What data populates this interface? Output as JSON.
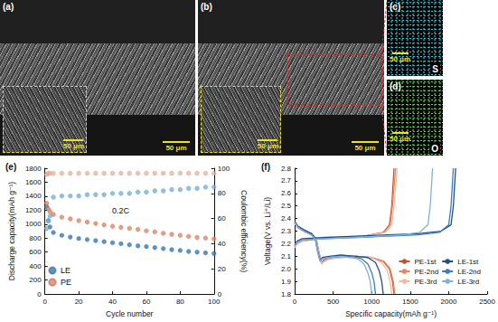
{
  "images": [
    {
      "label": "(a)",
      "scale_bar": "50 μm",
      "inset_scale_bar": "50 μm"
    },
    {
      "label": "(b)",
      "scale_bar": "50 μm",
      "inset_scale_bar": "50 μm"
    },
    {
      "label": "(c)",
      "scale_bar": "50 μm",
      "element": "S"
    },
    {
      "label": "(d)",
      "scale_bar": "50 μm",
      "element": "O"
    }
  ],
  "chart_data": [
    {
      "type": "scatter",
      "title": "(e)",
      "x_label": "Cycle number",
      "y_label": "Discharge capacity(mAh g⁻¹)",
      "y2_label": "Coulombic efficiency(%)",
      "annotations": [
        "0.2C"
      ],
      "x": [
        1,
        2,
        3,
        5,
        10,
        15,
        20,
        25,
        30,
        35,
        40,
        45,
        50,
        55,
        60,
        65,
        70,
        75,
        80,
        85,
        90,
        95,
        100
      ],
      "xlim": [
        0,
        100
      ],
      "xticks": [
        0,
        20,
        40,
        60,
        80,
        100
      ],
      "ylim": [
        0,
        1800
      ],
      "yticks": [
        0,
        200,
        400,
        600,
        800,
        1000,
        1200,
        1400,
        1600,
        1800
      ],
      "y2lim": [
        0,
        100
      ],
      "y2ticks": [
        0,
        20,
        40,
        60,
        80,
        100
      ],
      "legend": "lower left",
      "grid": false,
      "marker": "circle",
      "series": [
        {
          "name": "LE",
          "color": "#2b7bb9",
          "values": [
            1250,
            1050,
            960,
            880,
            840,
            815,
            795,
            780,
            765,
            750,
            735,
            720,
            705,
            690,
            680,
            665,
            650,
            635,
            625,
            610,
            600,
            590,
            580
          ]
        },
        {
          "name": "PE",
          "color": "#e8825c",
          "values": [
            1300,
            1220,
            1180,
            1140,
            1100,
            1075,
            1050,
            1030,
            1010,
            990,
            970,
            955,
            940,
            925,
            905,
            890,
            870,
            855,
            840,
            825,
            810,
            800,
            790
          ]
        },
        {
          "name": "LE",
          "color": "#6fb3e0",
          "axis": "y2",
          "values": [
            52,
            58,
            62,
            77,
            78,
            78,
            78,
            79,
            79,
            79,
            80,
            80,
            80,
            81,
            81,
            82,
            82,
            83,
            83,
            84,
            84,
            85,
            85
          ]
        },
        {
          "name": "PE",
          "color": "#f2b39a",
          "axis": "y2",
          "values": [
            95,
            96,
            96,
            96,
            96,
            96,
            96,
            96,
            96,
            96,
            96,
            96,
            96,
            96,
            96,
            96,
            96,
            96,
            96,
            96,
            96,
            96,
            96
          ]
        }
      ]
    },
    {
      "type": "line",
      "title": "(f)",
      "x_label": "Specific capacity(mAh g⁻¹)",
      "y_label": "Voltage(V vs. Li⁺/Li)",
      "xlim": [
        0,
        2500
      ],
      "xticks": [
        0,
        500,
        1000,
        1500,
        2000,
        2500
      ],
      "ylim": [
        1.8,
        2.8
      ],
      "yticks": [
        1.8,
        1.9,
        {
          "value": 2,
          "label": "2.0"
        },
        2.1,
        2.2,
        2.3,
        2.4,
        2.5,
        2.6,
        2.7,
        2.8
      ],
      "legend": "lower right",
      "grid": false,
      "line_style": "solid",
      "series": [
        {
          "name": "PE-1st",
          "color": "#c8542e",
          "x": [
            0,
            40,
            120,
            220,
            280,
            320,
            350,
            380,
            450,
            600,
            800,
            1000,
            1150,
            1230,
            1270,
            1290,
            null,
            0,
            30,
            100,
            300,
            600,
            900,
            1150,
            1230,
            1260,
            1275,
            1290
          ],
          "values": [
            2.37,
            2.34,
            2.31,
            2.28,
            2.24,
            2.12,
            2.05,
            2.07,
            2.09,
            2.1,
            2.1,
            2.09,
            2.06,
            2.0,
            1.9,
            1.8,
            null,
            2.18,
            2.21,
            2.23,
            2.24,
            2.25,
            2.26,
            2.29,
            2.35,
            2.5,
            2.65,
            2.8
          ]
        },
        {
          "name": "PE-2nd",
          "color": "#e8845f",
          "x": [
            0,
            40,
            120,
            220,
            280,
            320,
            350,
            380,
            450,
            600,
            800,
            1000,
            1160,
            1240,
            1280,
            1300,
            null,
            0,
            30,
            100,
            300,
            600,
            900,
            1160,
            1240,
            1270,
            1290,
            1310
          ],
          "values": [
            2.36,
            2.33,
            2.3,
            2.27,
            2.23,
            2.11,
            2.04,
            2.06,
            2.08,
            2.09,
            2.1,
            2.09,
            2.06,
            2.0,
            1.9,
            1.8,
            null,
            2.17,
            2.2,
            2.22,
            2.24,
            2.25,
            2.26,
            2.29,
            2.35,
            2.5,
            2.65,
            2.8
          ]
        },
        {
          "name": "PE-3rd",
          "color": "#f2b8a0",
          "x": [
            0,
            40,
            120,
            220,
            280,
            320,
            350,
            380,
            450,
            600,
            800,
            1000,
            1130,
            1200,
            1240,
            1260,
            null,
            0,
            30,
            100,
            300,
            600,
            900,
            1180,
            1260,
            1290,
            1310,
            1330
          ],
          "values": [
            2.36,
            2.33,
            2.3,
            2.27,
            2.23,
            2.11,
            2.04,
            2.06,
            2.08,
            2.09,
            2.1,
            2.09,
            2.05,
            1.99,
            1.9,
            1.8,
            null,
            2.17,
            2.2,
            2.22,
            2.24,
            2.25,
            2.26,
            2.29,
            2.35,
            2.5,
            2.65,
            2.8
          ]
        },
        {
          "name": "LE-1st",
          "color": "#1f4e8c",
          "x": [
            0,
            40,
            120,
            220,
            270,
            300,
            330,
            360,
            450,
            600,
            800,
            950,
            1050,
            1100,
            1130,
            1150,
            null,
            0,
            30,
            100,
            400,
            800,
            1200,
            1600,
            1900,
            2030,
            2060,
            2075,
            2090
          ],
          "values": [
            2.38,
            2.34,
            2.31,
            2.28,
            2.24,
            2.14,
            2.07,
            2.09,
            2.1,
            2.11,
            2.1,
            2.09,
            2.05,
            1.98,
            1.9,
            1.8,
            null,
            2.19,
            2.22,
            2.24,
            2.25,
            2.26,
            2.27,
            2.28,
            2.3,
            2.35,
            2.5,
            2.65,
            2.8
          ]
        },
        {
          "name": "LE-2nd",
          "color": "#3a7dc0",
          "x": [
            0,
            40,
            120,
            220,
            270,
            300,
            330,
            360,
            450,
            600,
            750,
            870,
            950,
            1000,
            1030,
            1050,
            null,
            0,
            30,
            100,
            400,
            800,
            1200,
            1600,
            1880,
            2000,
            2030,
            2045,
            2060
          ],
          "values": [
            2.37,
            2.33,
            2.3,
            2.27,
            2.23,
            2.13,
            2.06,
            2.08,
            2.09,
            2.1,
            2.1,
            2.08,
            2.04,
            1.97,
            1.9,
            1.8,
            null,
            2.18,
            2.21,
            2.23,
            2.24,
            2.25,
            2.26,
            2.27,
            2.29,
            2.35,
            2.5,
            2.65,
            2.8
          ]
        },
        {
          "name": "LE-3rd",
          "color": "#7fb2e0",
          "x": [
            0,
            40,
            120,
            220,
            270,
            300,
            330,
            360,
            450,
            600,
            720,
            820,
            900,
            950,
            980,
            1000,
            null,
            0,
            30,
            100,
            400,
            800,
            1100,
            1400,
            1620,
            1730,
            1760,
            1775,
            1790
          ],
          "values": [
            2.37,
            2.33,
            2.3,
            2.27,
            2.23,
            2.13,
            2.06,
            2.08,
            2.09,
            2.1,
            2.09,
            2.08,
            2.04,
            1.97,
            1.9,
            1.8,
            null,
            2.18,
            2.21,
            2.23,
            2.24,
            2.25,
            2.26,
            2.27,
            2.29,
            2.35,
            2.5,
            2.65,
            2.8
          ]
        }
      ]
    }
  ]
}
